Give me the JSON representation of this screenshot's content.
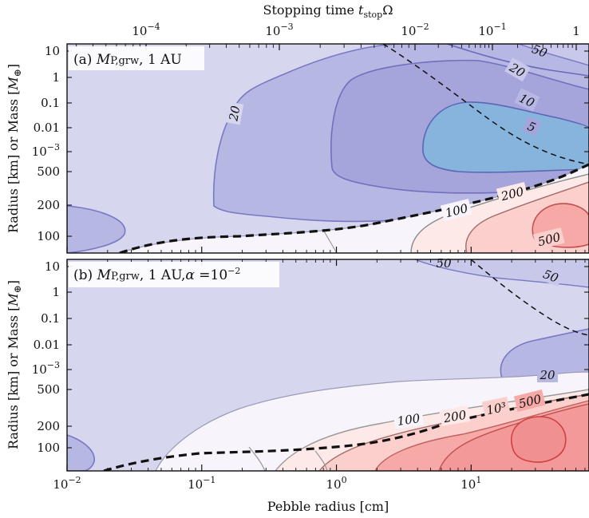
{
  "chart_data": {
    "type": "contour",
    "top_axis": {
      "label_prefix": "Stopping time ",
      "label_var": "t",
      "label_sub": "stop",
      "label_suffix": "Ω",
      "scale": "log",
      "ticks": [
        {
          "base": "10",
          "exp": "−4",
          "value": 0.0001
        },
        {
          "base": "10",
          "exp": "−3",
          "value": 0.001
        },
        {
          "base": "10",
          "exp": "−2",
          "value": 0.01
        },
        {
          "base": "10",
          "exp": "−1",
          "value": 0.1
        },
        {
          "base": "1",
          "exp": "",
          "value": 1
        }
      ]
    },
    "x_axis": {
      "label": "Pebble radius [cm]",
      "scale": "log",
      "range": [
        0.01,
        75
      ],
      "ticks": [
        {
          "base": "10",
          "exp": "−2",
          "value": 0.01
        },
        {
          "base": "10",
          "exp": "−1",
          "value": 0.1
        },
        {
          "base": "10",
          "exp": "0",
          "value": 1
        },
        {
          "base": "10",
          "exp": "1",
          "value": 10
        }
      ]
    },
    "y_axis": {
      "label": "Radius [km]   or   Mass [M⊕]",
      "label_plain": "Radius [km]   or   Mass [",
      "label_var": "M",
      "label_sub": "⊕",
      "label_end": "]",
      "scale": "log",
      "radius_ticks": [
        "500",
        "200",
        "100"
      ],
      "mass_ticks": [
        "10",
        "1",
        "0.1",
        "0.01",
        "10−3"
      ]
    },
    "panels": [
      {
        "label_prefix": "(a) ",
        "label_var": "M",
        "label_sub": "P,grw",
        "label_suffix": ", 1 AU",
        "contour_levels": [
          "20",
          "20",
          "10",
          "5",
          "50",
          "100",
          "200",
          "500"
        ]
      },
      {
        "label_prefix": "(b) ",
        "label_var": "M",
        "label_sub": "P,grw",
        "label_suffix": ", 1 AU,",
        "label_alpha": "α",
        "label_eq": " =10",
        "label_exp": "−2",
        "contour_levels": [
          "50",
          "50",
          "20",
          "100",
          "200",
          "10³",
          "500"
        ]
      }
    ],
    "colors": {
      "base": "#d6d6ee",
      "blue1": "#b7b7e4",
      "blue2": "#a5a5dc",
      "blue3": "#9e9ed8",
      "cyan": "#86b4dd",
      "white": "#f7f5fb",
      "pink1": "#fde9e7",
      "pink2": "#fbd0cc",
      "pink3": "#f7a9a8",
      "red": "#f19090"
    }
  }
}
